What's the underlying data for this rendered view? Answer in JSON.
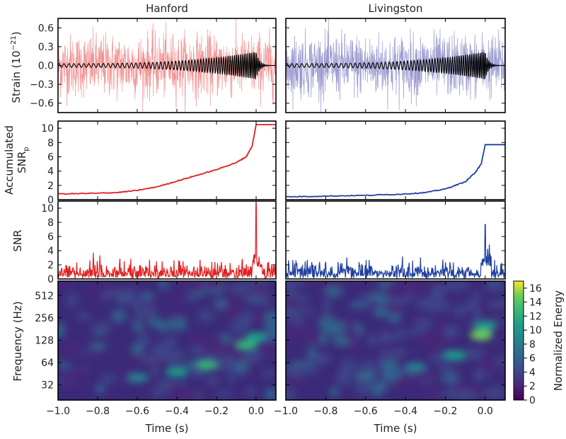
{
  "figure": {
    "detectors": [
      "Hanford",
      "Livingston"
    ],
    "time_axis_label": "Time (s)",
    "colorbar_label": "Normalized Energy"
  },
  "chart_data": [
    {
      "id": "strain",
      "type": "line",
      "ylabel": "Strain (10",
      "ylabel_sup": "−21",
      "ylabel_tail": ")",
      "xlim": [
        -1.0,
        0.1
      ],
      "ylim": [
        -0.75,
        0.75
      ],
      "yticks": [
        "0.6",
        "0.3",
        "0.0",
        "−0.3",
        "−0.6"
      ],
      "ytick_values": [
        0.6,
        0.3,
        0.0,
        -0.3,
        -0.6
      ],
      "series": [
        {
          "detector": "Hanford",
          "kind": "data",
          "color": "#f08080",
          "amplitude": 0.55
        },
        {
          "detector": "Hanford",
          "kind": "template",
          "color": "#000000",
          "amplitude_start": 0.03,
          "amplitude_peak": 0.22,
          "freq_start_hz": 40,
          "freq_peak_hz": 120
        },
        {
          "detector": "Livingston",
          "kind": "data",
          "color": "#8a8ac8",
          "amplitude": 0.55
        },
        {
          "detector": "Livingston",
          "kind": "template",
          "color": "#000000",
          "amplitude_start": 0.03,
          "amplitude_peak": 0.22,
          "freq_start_hz": 40,
          "freq_peak_hz": 120
        }
      ]
    },
    {
      "id": "accumulated",
      "type": "line",
      "ylabel_line1": "Accumulated",
      "ylabel_line2": "SNR",
      "ylabel_sub": "p",
      "xlim": [
        -1.0,
        0.1
      ],
      "ylim": [
        0,
        11
      ],
      "yticks": [
        "10",
        "8",
        "6",
        "4",
        "2",
        "0"
      ],
      "ytick_values": [
        10,
        8,
        6,
        4,
        2,
        0
      ],
      "series": [
        {
          "detector": "Hanford",
          "color": "#e02020",
          "x": [
            -1.0,
            -0.8,
            -0.7,
            -0.6,
            -0.5,
            -0.4,
            -0.3,
            -0.2,
            -0.1,
            -0.05,
            -0.02,
            0.0,
            0.1
          ],
          "y": [
            0.8,
            0.9,
            1.0,
            1.3,
            1.8,
            2.6,
            3.4,
            4.2,
            5.2,
            6.0,
            7.5,
            10.5,
            10.5
          ]
        },
        {
          "detector": "Livingston",
          "color": "#2040a0",
          "x": [
            -1.0,
            -0.8,
            -0.6,
            -0.4,
            -0.3,
            -0.2,
            -0.1,
            -0.05,
            -0.02,
            0.0,
            0.1
          ],
          "y": [
            0.4,
            0.5,
            0.6,
            0.8,
            1.0,
            1.5,
            2.5,
            3.8,
            5.0,
            7.7,
            7.7
          ]
        }
      ]
    },
    {
      "id": "snr",
      "type": "line",
      "ylabel": "SNR",
      "xlim": [
        -1.0,
        0.1
      ],
      "ylim": [
        0,
        11
      ],
      "yticks": [
        "10",
        "8",
        "6",
        "4",
        "2",
        "0"
      ],
      "ytick_values": [
        10,
        8,
        6,
        4,
        2,
        0
      ],
      "series": [
        {
          "detector": "Hanford",
          "color": "#e02020",
          "noise_level": 1.0,
          "peak_x": 0.0,
          "peak_y": 10.5
        },
        {
          "detector": "Livingston",
          "color": "#2040a0",
          "noise_level": 1.0,
          "peak_x": 0.0,
          "peak_y": 7.7
        }
      ]
    },
    {
      "id": "spectrogram",
      "type": "heatmap",
      "ylabel": "Frequency (Hz)",
      "xlim": [
        -1.0,
        0.1
      ],
      "yscale": "log2",
      "ylim": [
        20,
        800
      ],
      "yticks": [
        "512",
        "256",
        "128",
        "64",
        "32"
      ],
      "ytick_values": [
        512,
        256,
        128,
        64,
        32
      ],
      "xticks": [
        "−1.0",
        "−0.8",
        "−0.6",
        "−0.4",
        "−0.2",
        "0.0"
      ],
      "xtick_values": [
        -1.0,
        -0.8,
        -0.6,
        -0.4,
        -0.2,
        0.0
      ],
      "colorscale": "viridis",
      "colorbar_range": [
        0,
        17
      ],
      "colorbar_ticks": [
        "16",
        "14",
        "12",
        "10",
        "8",
        "6",
        "4",
        "2",
        "0"
      ],
      "colorbar_tick_values": [
        16,
        14,
        12,
        10,
        8,
        6,
        4,
        2,
        0
      ],
      "chirp": [
        {
          "detector": "Hanford",
          "points": [
            [
              -0.6,
              40,
              9
            ],
            [
              -0.4,
              48,
              11
            ],
            [
              -0.25,
              60,
              13
            ],
            [
              -0.05,
              110,
              12
            ],
            [
              0.0,
              140,
              10
            ]
          ]
        },
        {
          "detector": "Livingston",
          "points": [
            [
              -0.6,
              42,
              7
            ],
            [
              -0.35,
              55,
              9
            ],
            [
              -0.15,
              80,
              10
            ],
            [
              -0.02,
              150,
              15
            ],
            [
              0.0,
              200,
              11
            ]
          ]
        }
      ]
    }
  ]
}
